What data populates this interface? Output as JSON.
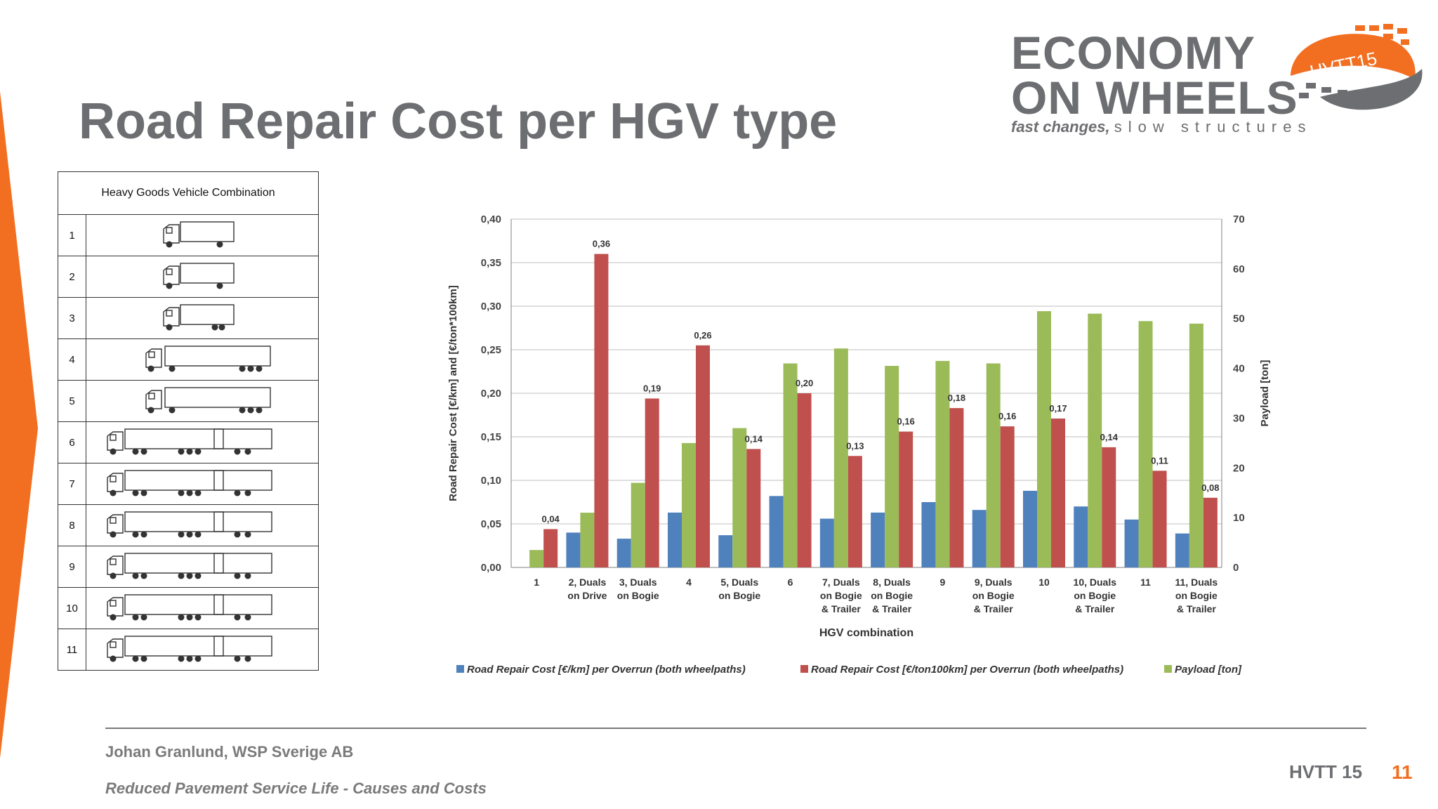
{
  "slide": {
    "title": "Road Repair Cost per HGV type",
    "author": "Johan Granlund, WSP Sverige AB",
    "subtitle": "Reduced Pavement Service Life - Causes and Costs",
    "conference": "HVTT 15",
    "page_number": "11"
  },
  "logo": {
    "line1": "ECONOMY",
    "line2": "ON WHEELS",
    "tagline_a": "fast changes,",
    "tagline_b": "slow structures",
    "badge": "HVTT15"
  },
  "colors": {
    "accent_orange": "#f26f21",
    "series_blue": "#4f81bd",
    "series_red": "#c0504d",
    "series_green": "#9bbb59",
    "title_gray": "#6d6e71"
  },
  "table": {
    "header": "Heavy Goods Vehicle Combination",
    "rows": [
      "1",
      "2",
      "3",
      "4",
      "5",
      "6",
      "7",
      "8",
      "9",
      "10",
      "11"
    ],
    "row_icons": [
      "truck-2-axle-icon",
      "truck-2-axle-icon",
      "truck-3-axle-icon",
      "tractor-semitrailer-icon",
      "tractor-semitrailer-icon",
      "truck-trailer-icon",
      "truck-trailer-icon",
      "truck-trailer-icon",
      "truck-trailer-icon",
      "truck-trailer-icon",
      "truck-trailer-icon"
    ]
  },
  "chart_data": {
    "type": "bar",
    "xlabel": "HGV combination",
    "ylabel": "Road Repair Cost [€/km] and [€/ton*100km]",
    "y2label": "Payload [ton]",
    "ylim": [
      0,
      0.4
    ],
    "y2lim": [
      0,
      70
    ],
    "yticks": [
      "0,00",
      "0,05",
      "0,10",
      "0,15",
      "0,20",
      "0,25",
      "0,30",
      "0,35",
      "0,40"
    ],
    "y2ticks": [
      "0",
      "10",
      "20",
      "30",
      "40",
      "50",
      "60",
      "70"
    ],
    "categories": [
      [
        "1"
      ],
      [
        "2, Duals",
        "on Drive"
      ],
      [
        "3, Duals",
        "on Bogie"
      ],
      [
        "4"
      ],
      [
        "5, Duals",
        "on Bogie"
      ],
      [
        "6"
      ],
      [
        "7, Duals",
        "on Bogie",
        "& Trailer"
      ],
      [
        "8, Duals",
        "on Bogie",
        "& Trailer"
      ],
      [
        "9"
      ],
      [
        "9, Duals",
        "on Bogie",
        "& Trailer"
      ],
      [
        "10"
      ],
      [
        "10, Duals",
        "on Bogie",
        "& Trailer"
      ],
      [
        "11"
      ],
      [
        "11, Duals",
        "on Bogie",
        "& Trailer"
      ]
    ],
    "series": [
      {
        "name": "Road Repair Cost [€/km] per Overrun (both wheelpaths)",
        "axis": "left",
        "values": [
          0.0,
          0.04,
          0.033,
          0.063,
          0.037,
          0.082,
          0.056,
          0.063,
          0.075,
          0.066,
          0.088,
          0.07,
          0.055,
          0.039
        ]
      },
      {
        "name": "Road Repair Cost [€/ton100km] per Overrun (both wheelpaths)",
        "axis": "left",
        "values": [
          0.044,
          0.36,
          0.194,
          0.255,
          0.136,
          0.2,
          0.128,
          0.156,
          0.183,
          0.162,
          0.171,
          0.138,
          0.111,
          0.08
        ],
        "labels": [
          "0,04",
          "0,36",
          "0,19",
          "0,26",
          "0,14",
          "0,20",
          "0,13",
          "0,16",
          "0,18",
          "0,16",
          "0,17",
          "0,14",
          "0,11",
          "0,08"
        ]
      },
      {
        "name": "Payload [ton]",
        "axis": "right",
        "values": [
          3.5,
          11,
          17,
          25,
          28,
          41,
          44,
          40.5,
          41.5,
          41,
          51.5,
          51,
          49.5,
          49
        ]
      }
    ],
    "legend_position": "bottom",
    "grid": true
  }
}
